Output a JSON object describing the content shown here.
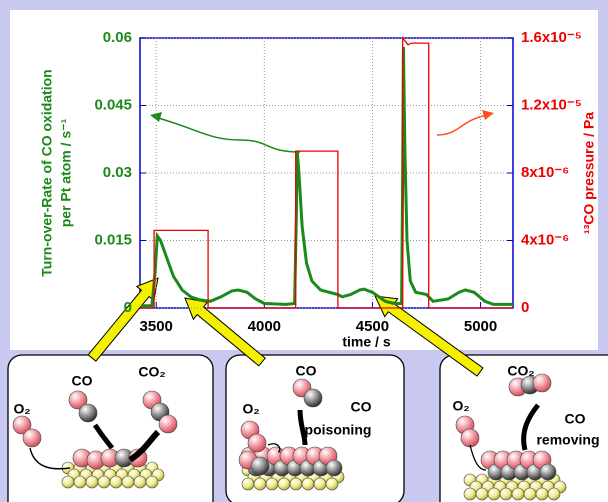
{
  "chart_data": {
    "type": "line",
    "xlabel": "time / s",
    "ylabel": [
      "Turn-over-Rate of CO oxidation",
      "per Pt atom / s⁻¹"
    ],
    "y2label": "¹³CO pressure / Pa",
    "xlim": [
      3425,
      5150
    ],
    "xticks": [
      3500,
      4000,
      4500,
      5000
    ],
    "ylim": [
      0,
      0.06
    ],
    "yticks": [
      0,
      0.015,
      0.03,
      0.045,
      0.06
    ],
    "y2lim": [
      0,
      1.6e-05
    ],
    "y2ticks": [
      0,
      {
        "value": 4e-06,
        "label": "4x10⁻⁶"
      },
      {
        "value": 8e-06,
        "label": "8x10⁻⁶"
      },
      {
        "value": 1.2e-05,
        "label": "1.2x10⁻⁵"
      },
      {
        "value": 1.6e-05,
        "label": "1.6x10⁻⁵"
      }
    ],
    "grid": true,
    "series": [
      {
        "color": "#1a8a1a",
        "x": [
          3430,
          3480,
          3495,
          3505,
          3520,
          3550,
          3580,
          3620,
          3660,
          3700,
          3750,
          3800,
          3850,
          3880,
          3920,
          3960,
          4000,
          4100,
          4140,
          4148,
          4152,
          4160,
          4175,
          4195,
          4220,
          4260,
          4300,
          4340,
          4360,
          4400,
          4440,
          4460,
          4500,
          4560,
          4600,
          4635,
          4640,
          4643,
          4650,
          4660,
          4675,
          4700,
          4750,
          4780,
          4850,
          4900,
          4930,
          4970,
          5020,
          5060,
          5150
        ],
        "values": [
          0.0005,
          0.0005,
          0.008,
          0.016,
          0.015,
          0.011,
          0.007,
          0.004,
          0.0025,
          0.0018,
          0.0015,
          0.0025,
          0.0038,
          0.004,
          0.0035,
          0.002,
          0.001,
          0.0008,
          0.001,
          0.02,
          0.035,
          0.03,
          0.018,
          0.01,
          0.006,
          0.004,
          0.0035,
          0.003,
          0.0025,
          0.003,
          0.004,
          0.0042,
          0.0035,
          0.0015,
          0.001,
          0.001,
          0.03,
          0.058,
          0.035,
          0.015,
          0.006,
          0.0035,
          0.003,
          0.0015,
          0.002,
          0.0035,
          0.004,
          0.0035,
          0.0015,
          0.0008,
          0.0008
        ]
      },
      {
        "color": "#ee0000",
        "axis": "y2",
        "x": [
          3425,
          3490,
          3490,
          3740,
          3740,
          4145,
          4145,
          4340,
          4340,
          4640,
          4640,
          4665,
          4680,
          4760,
          4760,
          5150
        ],
        "values": [
          0,
          0,
          4.6e-06,
          4.6e-06,
          0,
          0,
          9.3e-06,
          9.3e-06,
          0,
          0,
          1.6e-05,
          1.56e-05,
          1.57e-05,
          1.57e-05,
          0,
          0
        ]
      }
    ]
  },
  "diagram": {
    "panels": [
      {
        "labels": [
          "O₂",
          "CO",
          "CO₂"
        ]
      },
      {
        "labels": [
          "CO",
          "O₂",
          "CO",
          "poisoning"
        ]
      },
      {
        "labels": [
          "CO₂",
          "O₂",
          "CO",
          "removing"
        ]
      }
    ]
  }
}
